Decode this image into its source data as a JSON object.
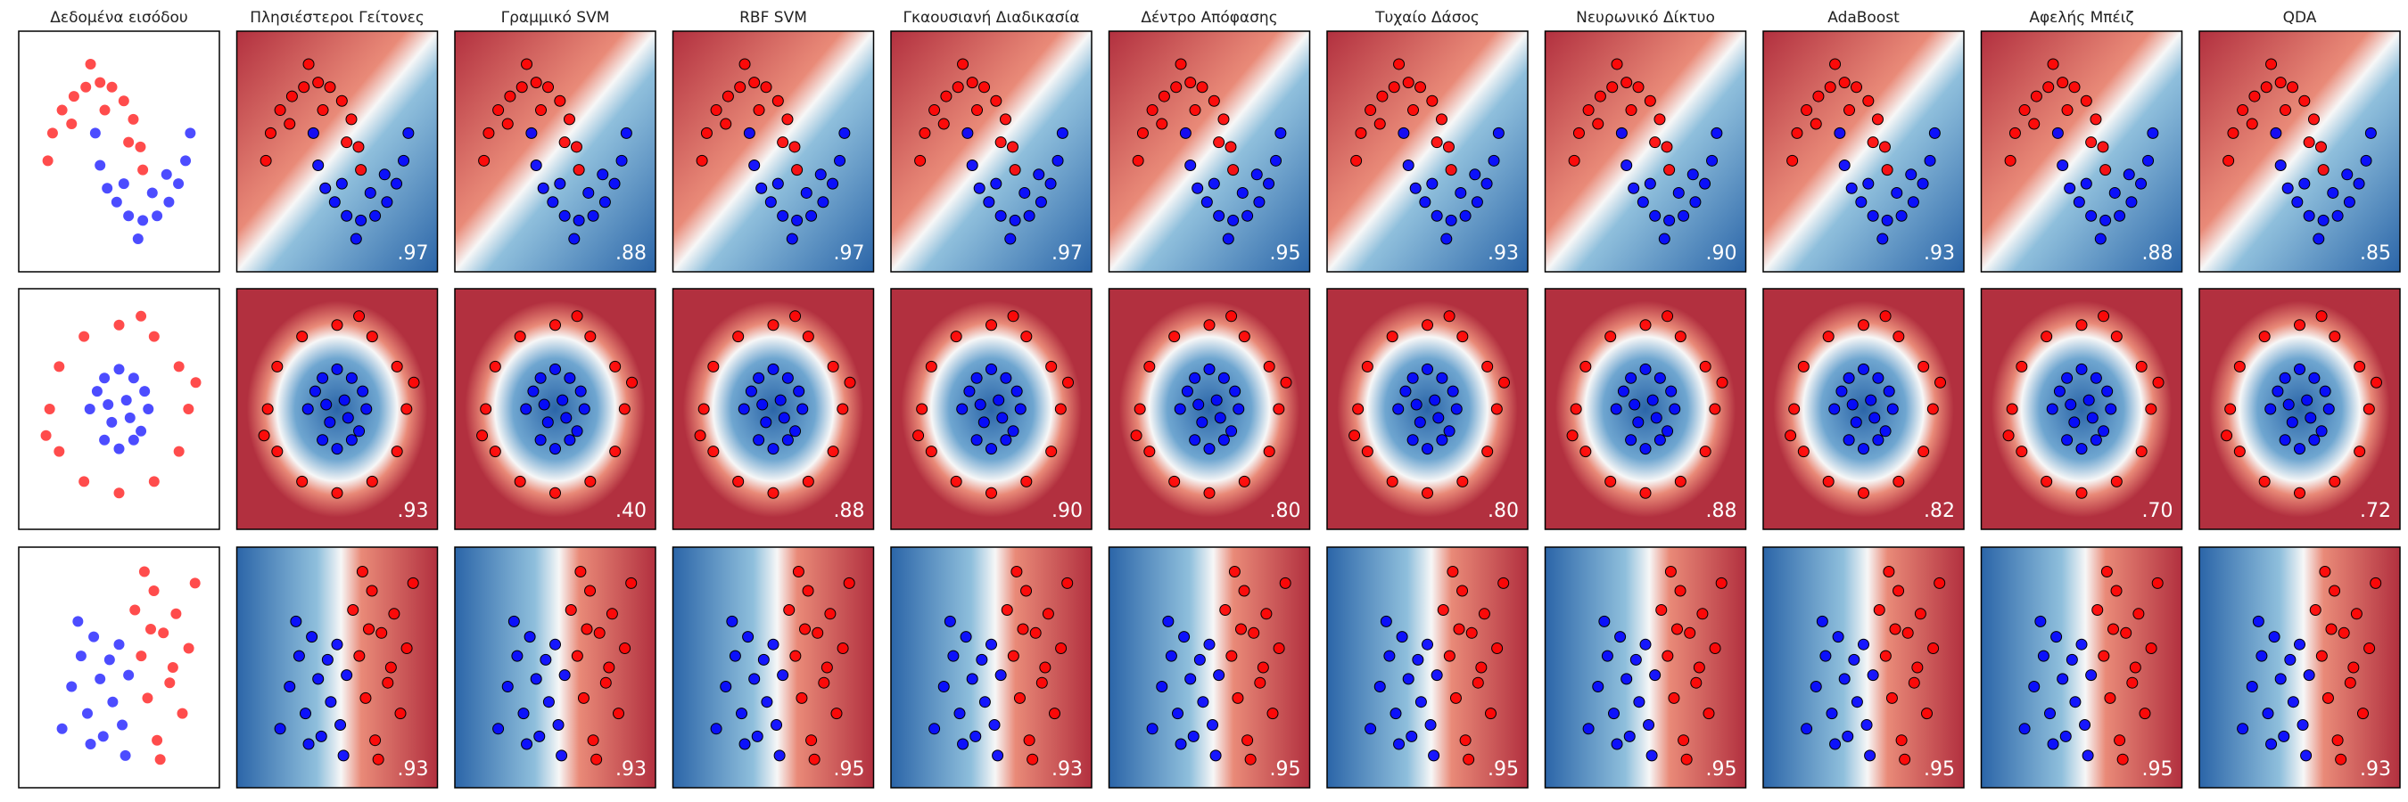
{
  "columns": [
    "Δεδομένα εισόδου",
    "Πλησιέστεροι Γείτονες",
    "Γραμμικό SVM",
    "RBF SVM",
    "Γκαουσιανή Διαδικασία",
    "Δέντρο Απόφασης",
    "Τυχαίο Δάσος",
    "Νευρωνικό Δίκτυο",
    "AdaBoost",
    "Αφελής Μπέιζ",
    "QDA"
  ],
  "scores": [
    [
      ".97",
      ".88",
      ".97",
      ".97",
      ".95",
      ".93",
      ".90",
      ".93",
      ".88",
      ".85"
    ],
    [
      ".93",
      ".40",
      ".88",
      ".90",
      ".80",
      ".80",
      ".88",
      ".82",
      ".70",
      ".72"
    ],
    [
      ".93",
      ".93",
      ".95",
      ".93",
      ".95",
      ".95",
      ".95",
      ".95",
      ".95",
      ".93"
    ]
  ],
  "datasets": [
    {
      "type": "scatter",
      "background": "moons",
      "xlim": [
        -1.5,
        2.5
      ],
      "ylim": [
        -1,
        1.5
      ],
      "series": [
        {
          "color": "#ff0000",
          "x": [
            1.0,
            0.95,
            0.8,
            0.6,
            0.35,
            0.1,
            -0.2,
            -0.45,
            -0.7,
            -0.9,
            -1.0,
            0.2,
            -0.5,
            0.7,
            -0.1
          ],
          "y": [
            0.05,
            0.3,
            0.6,
            0.8,
            0.95,
            1.0,
            0.95,
            0.85,
            0.7,
            0.45,
            0.15,
            0.7,
            0.55,
            0.35,
            1.2
          ]
        },
        {
          "color": "#0000ff",
          "x": [
            0.0,
            0.1,
            0.25,
            0.45,
            0.7,
            1.0,
            1.3,
            1.55,
            1.75,
            1.9,
            2.0,
            0.6,
            1.2,
            1.5,
            0.9
          ],
          "y": [
            0.45,
            0.1,
            -0.15,
            -0.3,
            -0.45,
            -0.5,
            -0.45,
            -0.3,
            -0.1,
            0.15,
            0.45,
            -0.1,
            -0.2,
            0.0,
            -0.7
          ]
        }
      ]
    },
    {
      "type": "scatter",
      "background": "circles",
      "xlim": [
        -1.3,
        1.3
      ],
      "ylim": [
        -1.3,
        1.3
      ],
      "series": [
        {
          "color": "#ff0000",
          "x": [
            0.95,
            0.82,
            0.48,
            0,
            -0.48,
            -0.82,
            -0.95,
            -0.82,
            -0.48,
            0,
            0.48,
            0.82,
            1.05,
            -1.0,
            0.3
          ],
          "y": [
            0,
            0.48,
            0.82,
            0.95,
            0.82,
            0.48,
            0,
            -0.48,
            -0.82,
            -0.95,
            -0.82,
            -0.48,
            0.3,
            -0.3,
            1.05
          ]
        },
        {
          "color": "#0000ff",
          "x": [
            0.4,
            0.2,
            -0.2,
            -0.4,
            -0.2,
            0.2,
            0.1,
            -0.1,
            0.35,
            -0.3,
            0,
            0,
            0.15,
            -0.15,
            0.3
          ],
          "y": [
            0,
            0.35,
            0.35,
            0,
            -0.35,
            -0.35,
            0.1,
            -0.15,
            0.2,
            0.2,
            0.45,
            -0.45,
            -0.1,
            0.05,
            -0.25
          ]
        }
      ]
    },
    {
      "type": "scatter",
      "background": "linear",
      "xlim": [
        -3,
        3
      ],
      "ylim": [
        -3,
        3
      ],
      "series": [
        {
          "color": "#0000ff",
          "x": [
            -1.5,
            -1.2,
            -1.0,
            -0.8,
            -0.6,
            -0.5,
            -0.3,
            -0.2,
            0,
            0.1,
            -1.8,
            -0.9,
            0.3,
            -1.3,
            0.2
          ],
          "y": [
            -0.5,
            0.3,
            -1.2,
            0.8,
            -0.3,
            -1.8,
            0.2,
            -0.9,
            0.6,
            -1.5,
            -1.6,
            -2.0,
            -0.2,
            1.2,
            -2.3
          ]
        },
        {
          "color": "#ff0000",
          "x": [
            0.5,
            0.7,
            0.9,
            1.1,
            1.2,
            1.4,
            1.6,
            1.8,
            2.0,
            2.2,
            0.8,
            1.3,
            2.4,
            1.0,
            1.7
          ],
          "y": [
            1.5,
            0.3,
            -0.8,
            2.0,
            -1.9,
            0.9,
            -0.4,
            1.4,
            -1.2,
            0.5,
            2.5,
            -2.4,
            2.2,
            1.0,
            0.0
          ]
        }
      ]
    }
  ]
}
